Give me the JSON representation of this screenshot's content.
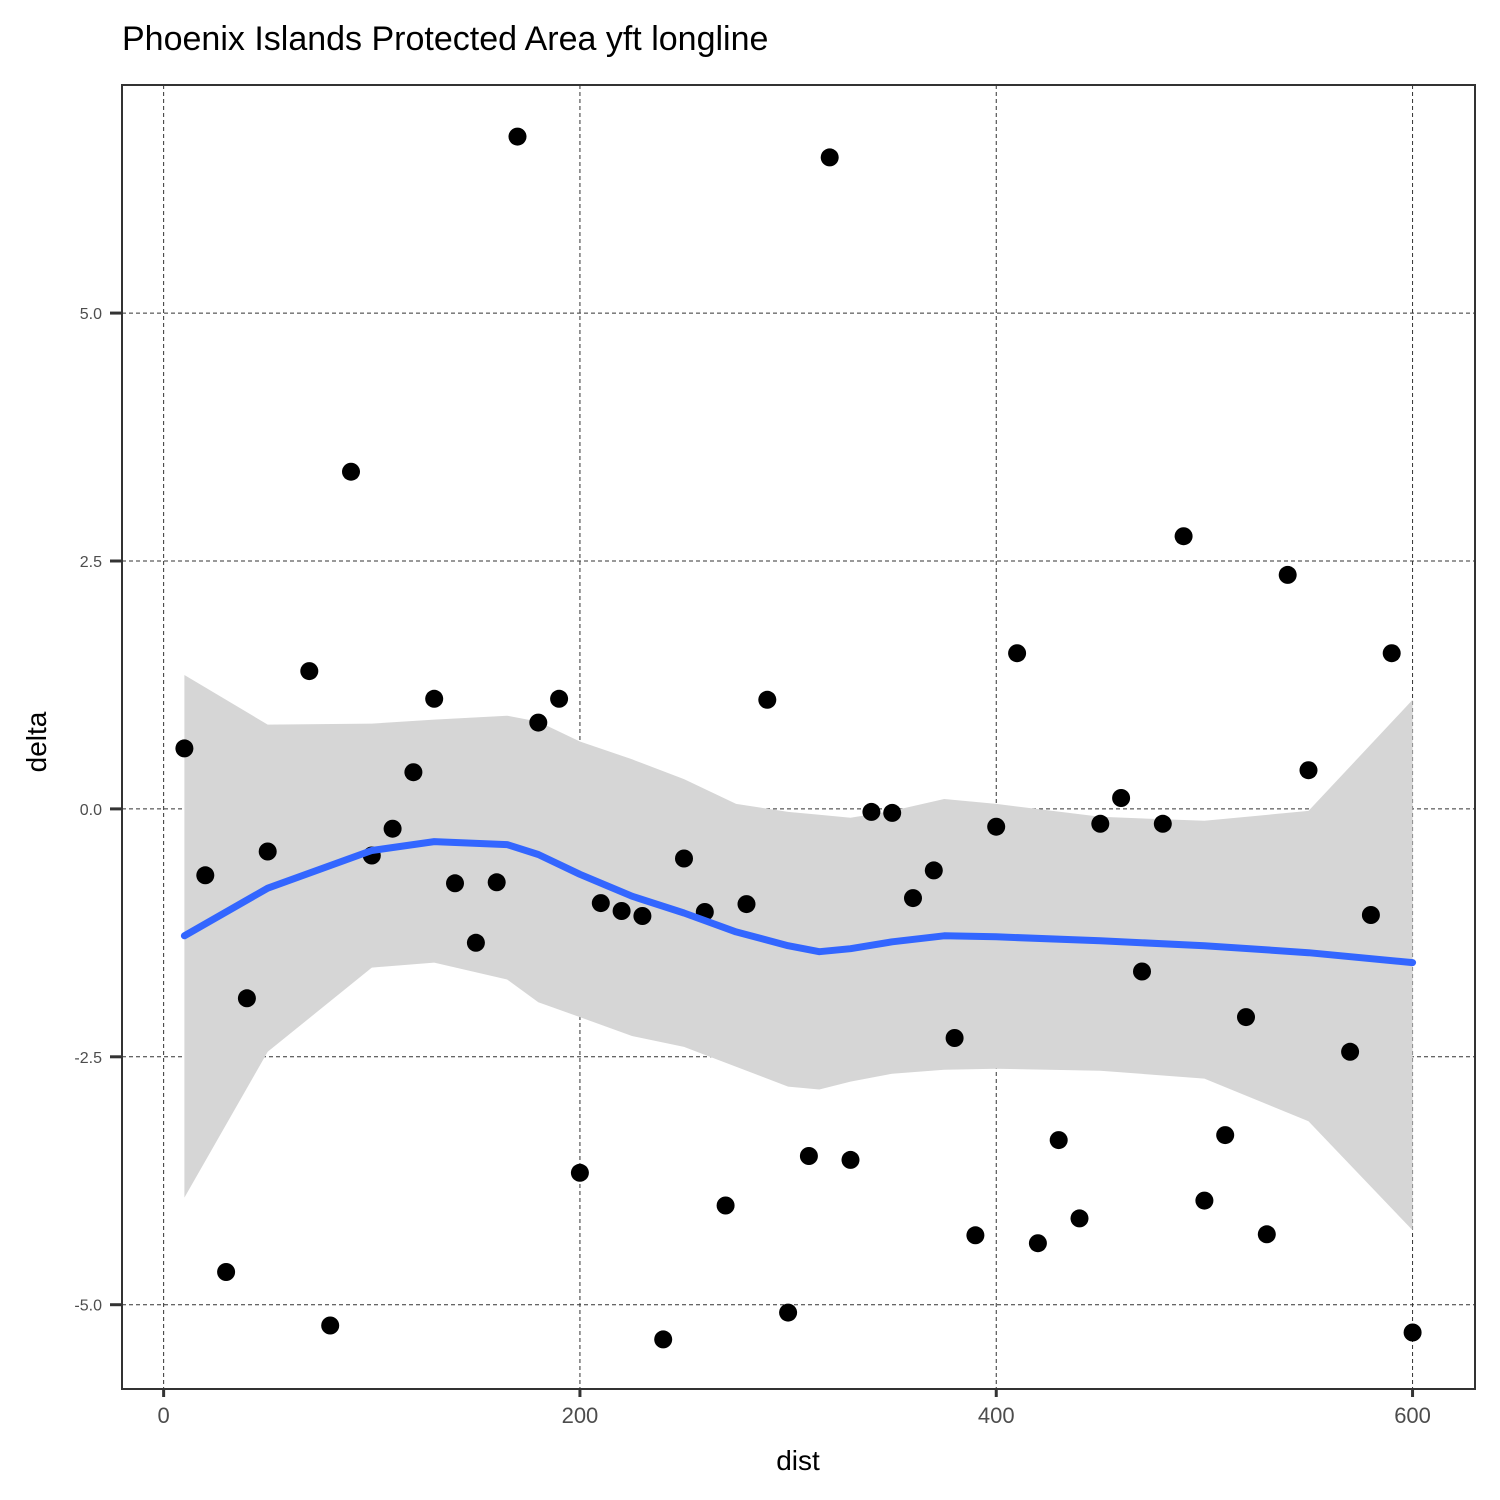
{
  "chart_data": {
    "type": "scatter",
    "title": "Phoenix Islands Protected Area yft longline",
    "xlabel": "dist",
    "ylabel": "delta",
    "xlim": [
      -20,
      630
    ],
    "ylim": [
      -5.85,
      7.3
    ],
    "x_ticks": [
      0,
      200,
      400,
      600
    ],
    "x_tick_labels": [
      "0",
      "200",
      "400",
      "600"
    ],
    "y_ticks": [
      -5,
      -2.5,
      0,
      2.5,
      5
    ],
    "y_tick_labels": [
      "-5.0",
      "-2.5",
      "0.0",
      "2.5",
      "5.0"
    ],
    "grid": true,
    "points": {
      "x": [
        10,
        20,
        30,
        40,
        50,
        70,
        80,
        90,
        100,
        110,
        120,
        130,
        140,
        150,
        160,
        170,
        180,
        190,
        200,
        210,
        220,
        230,
        240,
        250,
        260,
        270,
        280,
        290,
        300,
        310,
        320,
        330,
        340,
        350,
        360,
        370,
        380,
        390,
        400,
        410,
        420,
        430,
        440,
        450,
        460,
        470,
        480,
        490,
        500,
        510,
        520,
        530,
        540,
        550,
        570,
        580,
        590,
        600
      ],
      "y": [
        0.61,
        -0.67,
        -4.67,
        -1.91,
        -0.43,
        1.39,
        -5.21,
        3.4,
        -0.47,
        -0.2,
        0.37,
        1.11,
        -0.75,
        -1.35,
        -0.74,
        6.78,
        0.87,
        1.11,
        -3.67,
        -0.95,
        -1.03,
        -1.08,
        -5.35,
        -0.5,
        -1.04,
        -4.0,
        -0.96,
        1.1,
        -5.08,
        -3.5,
        6.57,
        -3.54,
        -0.03,
        -0.04,
        -0.9,
        -0.62,
        -2.31,
        -4.3,
        -0.18,
        1.57,
        -4.38,
        -3.34,
        -4.13,
        -0.15,
        0.11,
        -1.64,
        -0.15,
        2.75,
        -3.95,
        -3.29,
        -2.1,
        -4.29,
        2.36,
        0.39,
        -2.45,
        -1.07,
        1.57,
        -5.28
      ]
    },
    "smooth": {
      "method": "loess",
      "color": "#3366FF",
      "fill": "#d6d6d6",
      "x": [
        10,
        50,
        100,
        130,
        165,
        180,
        200,
        225,
        250,
        275,
        300,
        315,
        330,
        350,
        375,
        400,
        450,
        500,
        550,
        600
      ],
      "fit": [
        -1.28,
        -0.8,
        -0.42,
        -0.33,
        -0.36,
        -0.46,
        -0.66,
        -0.88,
        -1.05,
        -1.24,
        -1.38,
        -1.44,
        -1.41,
        -1.34,
        -1.28,
        -1.29,
        -1.33,
        -1.38,
        -1.45,
        -1.55
      ],
      "lower": [
        -3.92,
        -2.45,
        -1.6,
        -1.55,
        -1.72,
        -1.95,
        -2.1,
        -2.29,
        -2.4,
        -2.6,
        -2.8,
        -2.83,
        -2.75,
        -2.67,
        -2.63,
        -2.62,
        -2.64,
        -2.72,
        -3.15,
        -4.25
      ],
      "upper": [
        1.35,
        0.85,
        0.86,
        0.9,
        0.94,
        0.88,
        0.68,
        0.5,
        0.3,
        0.05,
        -0.03,
        -0.06,
        -0.09,
        -0.02,
        0.1,
        0.05,
        -0.08,
        -0.12,
        -0.02,
        1.1
      ]
    }
  }
}
